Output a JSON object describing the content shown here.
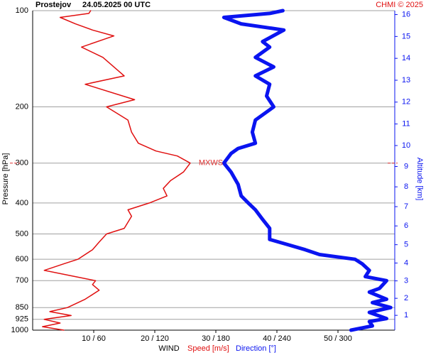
{
  "chart_data": {
    "type": "line",
    "title": "Prostejov",
    "subtitle": "24.05.2025 00 UTC",
    "credit": "CHMI © 2025",
    "y_label": "Pressure [hPa]",
    "y2_label": "Altitude [km]",
    "x_label": "WIND",
    "ylim": [
      1000,
      100
    ],
    "log_y": true,
    "yticks": [
      100,
      200,
      300,
      400,
      500,
      600,
      700,
      850,
      925,
      1000
    ],
    "y2ticks": [
      1,
      2,
      3,
      4,
      5,
      6,
      7,
      8,
      9,
      10,
      11,
      12,
      13,
      14,
      15,
      16
    ],
    "xlim": [
      0,
      59.3
    ],
    "x2lim": [
      0,
      356
    ],
    "xticks": [
      {
        "value": 10,
        "label": "10 / 60"
      },
      {
        "value": 20,
        "label": "20 / 120"
      },
      {
        "value": 30,
        "label": "30 / 180"
      },
      {
        "value": 40,
        "label": "40 / 240"
      },
      {
        "value": 50,
        "label": "50 / 300"
      }
    ],
    "grid": true,
    "annotation": {
      "text": "MXWS",
      "pressure": 300,
      "color": "#e03030"
    },
    "series": [
      {
        "name": "Speed [m/s]",
        "color": "#e01010",
        "pressure": [
          1000,
          975,
          950,
          925,
          900,
          875,
          850,
          800,
          750,
          720,
          700,
          680,
          650,
          620,
          600,
          560,
          530,
          500,
          480,
          440,
          420,
          400,
          380,
          360,
          340,
          320,
          300,
          285,
          275,
          260,
          240,
          220,
          200,
          190,
          170,
          160,
          140,
          130,
          120,
          115,
          110,
          105,
          102,
          100
        ],
        "values": [
          5.1,
          1.6,
          4.5,
          1.9,
          6.3,
          2.8,
          5.7,
          8.6,
          10.9,
          9.8,
          10.3,
          7.0,
          1.9,
          5.1,
          7.4,
          9.8,
          10.9,
          12.1,
          15,
          16.2,
          15.6,
          19.1,
          22,
          21.4,
          22.6,
          24.7,
          25.8,
          23.7,
          20.2,
          17.3,
          16.2,
          15.6,
          12.1,
          16.7,
          8.6,
          15,
          11.5,
          8,
          13.3,
          9.8,
          7,
          4.5,
          9.2,
          9.5
        ]
      },
      {
        "name": "Direction [°]",
        "color": "#0a14f0",
        "axis": "x2",
        "pressure": [
          1000,
          970,
          940,
          920,
          880,
          850,
          820,
          800,
          760,
          740,
          700,
          680,
          650,
          620,
          600,
          580,
          560,
          540,
          520,
          480,
          450,
          420,
          400,
          380,
          350,
          320,
          300,
          280,
          270,
          260,
          240,
          220,
          200,
          185,
          170,
          160,
          150,
          140,
          130,
          125,
          115,
          110,
          105,
          102,
          100
        ],
        "values": [
          313,
          334,
          331,
          348,
          331,
          352,
          334,
          348,
          331,
          341,
          348,
          327,
          331,
          324,
          317,
          282,
          268,
          251,
          233,
          233,
          226,
          219,
          212,
          205,
          202,
          195,
          188,
          195,
          202,
          219,
          216,
          219,
          237,
          230,
          233,
          219,
          237,
          219,
          233,
          226,
          247,
          205,
          188,
          233,
          246
        ]
      }
    ]
  }
}
